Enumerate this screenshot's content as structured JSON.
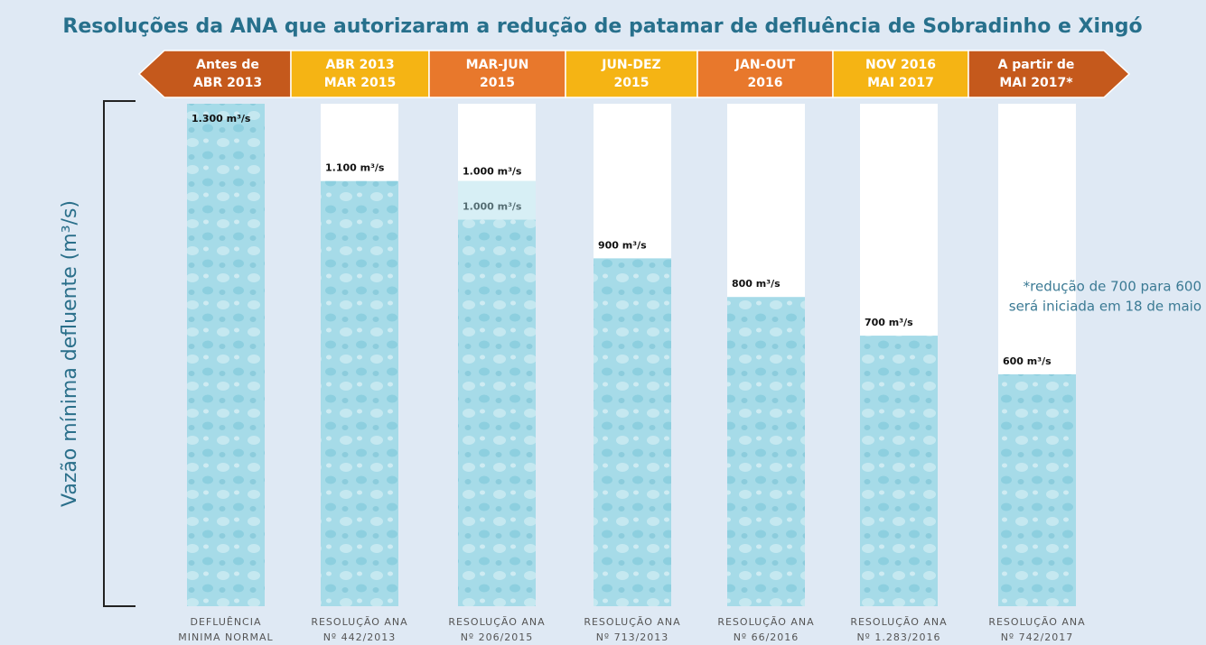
{
  "chart_data": {
    "type": "bar",
    "title": "Resoluções da ANA que autorizaram a redução de patamar de defluência de Sobradinho e Xingó",
    "y_label": "Vazão mínima defluente (m³/s)",
    "periods": [
      [
        "Antes de",
        "ABR 2013"
      ],
      [
        "ABR 2013",
        "MAR 2015"
      ],
      [
        "MAR-JUN",
        "2015"
      ],
      [
        "JUN-DEZ",
        "2015"
      ],
      [
        "JAN-OUT",
        "2016"
      ],
      [
        "NOV 2016",
        "MAI 2017"
      ],
      [
        "A partir de",
        "MAI 2017*"
      ]
    ],
    "period_colors": [
      "#c5591c",
      "#f5b414",
      "#e8782c",
      "#f5b414",
      "#e8782c",
      "#f5b414",
      "#c5591c"
    ],
    "categories": [
      [
        "DEFLUÊNCIA",
        "MINIMA NORMAL"
      ],
      [
        "RESOLUÇÃO ANA",
        "Nº 442/2013"
      ],
      [
        "RESOLUÇÃO ANA",
        "Nº 206/2015"
      ],
      [
        "RESOLUÇÃO ANA",
        "Nº 713/2013"
      ],
      [
        "RESOLUÇÃO ANA",
        "Nº 66/2016"
      ],
      [
        "RESOLUÇÃO ANA",
        "Nº 1.283/2016"
      ],
      [
        "RESOLUÇÃO ANA",
        "Nº 742/2017"
      ]
    ],
    "values": [
      1300,
      1100,
      1000,
      900,
      800,
      700,
      600
    ],
    "value_labels": [
      "1.300 m³/s",
      "1.100 m³/s",
      "1.000 m³/s",
      "900 m³/s",
      "800 m³/s",
      "700 m³/s",
      "600 m³/s"
    ],
    "annotations": [
      {
        "category": 2,
        "text": "1.000 m³/s"
      }
    ],
    "note": [
      "*redução de 700 para 600",
      "será iniciada em 18 de maio"
    ],
    "color": "#a6dbe8",
    "ylim": [
      0,
      1300
    ]
  }
}
